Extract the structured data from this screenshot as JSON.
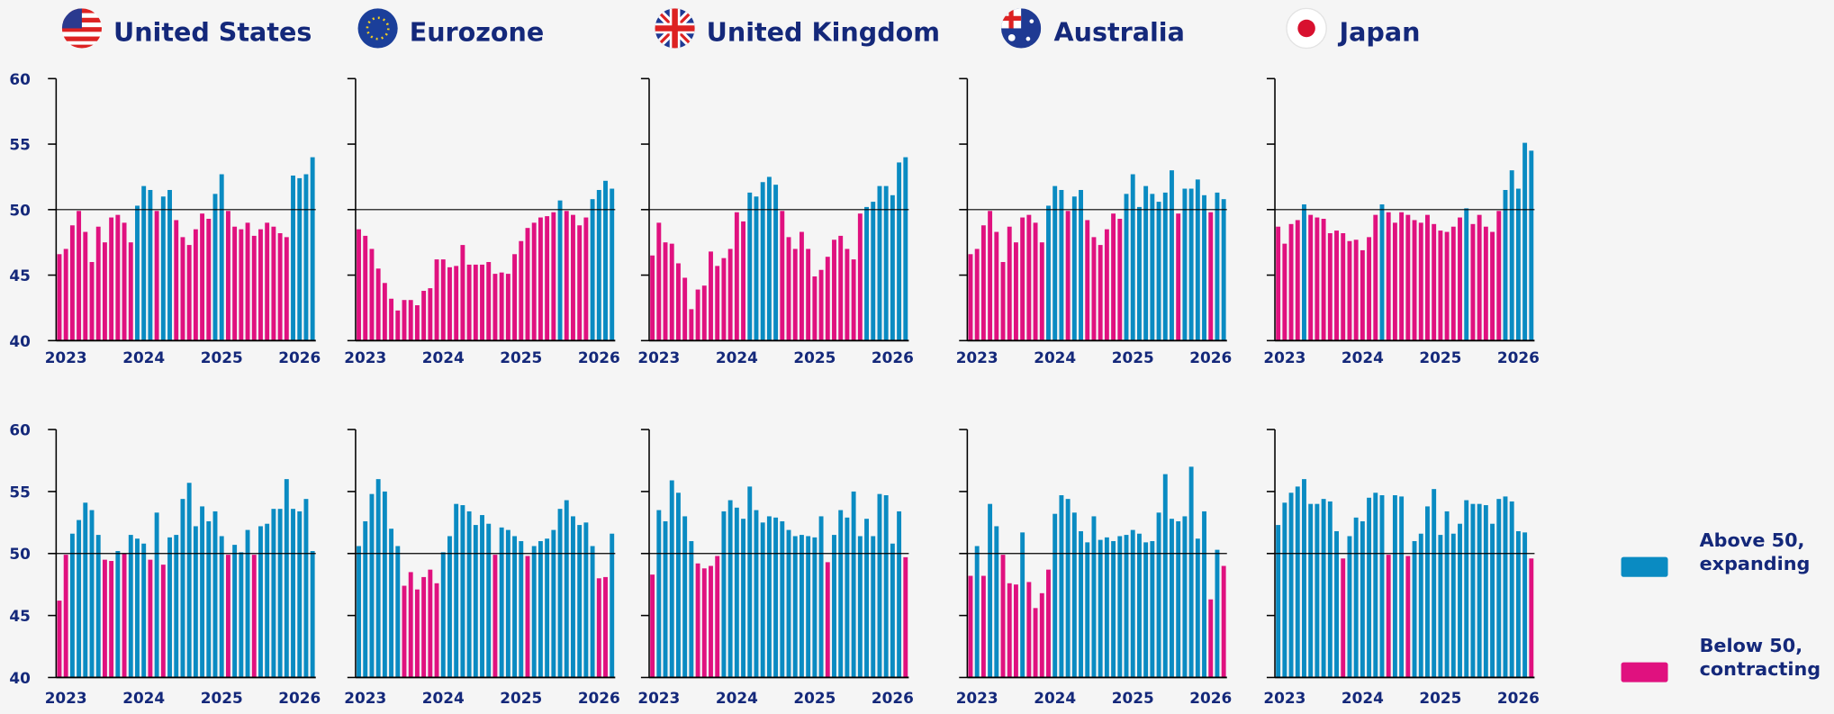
{
  "legend": [
    {
      "label": "Above 50, expanding",
      "color": "#0a8bc2"
    },
    {
      "label": "Below 50, contracting",
      "color": "#e0117f"
    }
  ],
  "chart_data": [
    {
      "type": "bar",
      "title": "United States",
      "reference_line": 50,
      "ylim": [
        40,
        60
      ],
      "yticks": [
        40,
        45,
        50,
        55,
        60
      ],
      "show_ytick_labels": true,
      "categories": [
        null,
        "2023",
        null,
        null,
        null,
        null,
        null,
        null,
        null,
        null,
        null,
        null,
        null,
        "2024",
        null,
        null,
        null,
        null,
        null,
        null,
        null,
        null,
        null,
        null,
        null,
        "2025",
        null,
        null,
        null,
        null,
        null,
        null,
        null,
        null,
        null,
        null,
        null,
        "2026",
        null,
        null
      ],
      "values": [
        46.6,
        47.0,
        48.8,
        49.9,
        48.3,
        46.0,
        48.7,
        47.5,
        49.4,
        49.6,
        49.0,
        47.5,
        50.3,
        51.8,
        51.5,
        49.9,
        51.0,
        51.5,
        49.2,
        47.9,
        47.3,
        48.5,
        49.7,
        49.3,
        51.2,
        52.7,
        49.9,
        48.7,
        48.5,
        49.0,
        48.0,
        48.5,
        49.0,
        48.7,
        48.2,
        47.9,
        52.6,
        52.4,
        52.7,
        54.0
      ]
    },
    {
      "type": "bar",
      "title": "Eurozone",
      "reference_line": 50,
      "ylim": [
        40,
        60
      ],
      "yticks": [
        40,
        45,
        50,
        55,
        60
      ],
      "show_ytick_labels": false,
      "categories": [
        null,
        "2023",
        null,
        null,
        null,
        null,
        null,
        null,
        null,
        null,
        null,
        null,
        null,
        "2024",
        null,
        null,
        null,
        null,
        null,
        null,
        null,
        null,
        null,
        null,
        null,
        "2025",
        null,
        null,
        null,
        null,
        null,
        null,
        null,
        null,
        null,
        null,
        null,
        "2026",
        null,
        null
      ],
      "values": [
        48.5,
        48.0,
        47.0,
        45.5,
        44.4,
        43.2,
        42.3,
        43.1,
        43.1,
        42.7,
        43.8,
        44.0,
        46.2,
        46.2,
        45.6,
        45.7,
        47.3,
        45.8,
        45.8,
        45.8,
        46.0,
        45.1,
        45.2,
        45.1,
        46.6,
        47.6,
        48.6,
        49.0,
        49.4,
        49.5,
        49.8,
        50.7,
        49.9,
        49.6,
        48.8,
        49.4,
        50.8,
        51.5,
        52.2,
        51.6
      ]
    },
    {
      "type": "bar",
      "title": "United Kingdom",
      "reference_line": 50,
      "ylim": [
        40,
        60
      ],
      "yticks": [
        40,
        45,
        50,
        55,
        60
      ],
      "show_ytick_labels": false,
      "categories": [
        null,
        "2023",
        null,
        null,
        null,
        null,
        null,
        null,
        null,
        null,
        null,
        null,
        null,
        "2024",
        null,
        null,
        null,
        null,
        null,
        null,
        null,
        null,
        null,
        null,
        null,
        "2025",
        null,
        null,
        null,
        null,
        null,
        null,
        null,
        null,
        null,
        null,
        null,
        "2026",
        null,
        null
      ],
      "values": [
        46.5,
        49.0,
        47.5,
        47.4,
        45.9,
        44.8,
        42.4,
        43.9,
        44.2,
        46.8,
        45.7,
        46.3,
        47.0,
        49.8,
        49.1,
        51.3,
        51.0,
        52.1,
        52.5,
        51.9,
        49.9,
        47.9,
        47.0,
        48.3,
        47.0,
        44.9,
        45.4,
        46.4,
        47.7,
        48.0,
        47.0,
        46.2,
        49.7,
        50.2,
        50.6,
        51.8,
        51.8,
        51.1,
        53.6,
        54.0
      ]
    },
    {
      "type": "bar",
      "title": "Australia",
      "reference_line": 50,
      "ylim": [
        40,
        60
      ],
      "yticks": [
        40,
        45,
        50,
        55,
        60
      ],
      "show_ytick_labels": false,
      "categories": [
        null,
        "2023",
        null,
        null,
        null,
        null,
        null,
        null,
        null,
        null,
        null,
        null,
        null,
        "2024",
        null,
        null,
        null,
        null,
        null,
        null,
        null,
        null,
        null,
        null,
        null,
        "2025",
        null,
        null,
        null,
        null,
        null,
        null,
        null,
        null,
        null,
        null,
        null,
        "2026",
        null,
        null
      ],
      "values": [
        46.6,
        47.0,
        48.8,
        49.9,
        48.3,
        46.0,
        48.7,
        47.5,
        49.4,
        49.6,
        49.0,
        47.5,
        50.3,
        51.8,
        51.5,
        49.9,
        51.0,
        51.5,
        49.2,
        47.9,
        47.3,
        48.5,
        49.7,
        49.3,
        51.2,
        52.7,
        50.2,
        51.8,
        51.2,
        50.6,
        51.3,
        53.0,
        49.7,
        51.6,
        51.6,
        52.3,
        51.1,
        49.8,
        51.3,
        50.8
      ]
    },
    {
      "type": "bar",
      "title": "Japan",
      "reference_line": 50,
      "ylim": [
        40,
        60
      ],
      "yticks": [
        40,
        45,
        50,
        55,
        60
      ],
      "show_ytick_labels": false,
      "categories": [
        null,
        "2023",
        null,
        null,
        null,
        null,
        null,
        null,
        null,
        null,
        null,
        null,
        null,
        "2024",
        null,
        null,
        null,
        null,
        null,
        null,
        null,
        null,
        null,
        null,
        null,
        "2025",
        null,
        null,
        null,
        null,
        null,
        null,
        null,
        null,
        null,
        null,
        null,
        "2026",
        null,
        null
      ],
      "values": [
        48.7,
        47.4,
        48.9,
        49.2,
        50.4,
        49.6,
        49.4,
        49.3,
        48.2,
        48.4,
        48.2,
        47.6,
        47.7,
        46.9,
        47.9,
        49.6,
        50.4,
        49.8,
        49.0,
        49.8,
        49.6,
        49.2,
        49.0,
        49.6,
        48.9,
        48.4,
        48.3,
        48.7,
        49.4,
        50.1,
        48.9,
        49.6,
        48.7,
        48.3,
        49.9,
        51.5,
        53.0,
        51.6,
        55.1,
        54.5
      ]
    },
    {
      "type": "bar",
      "reference_line": 50,
      "ylim": [
        40,
        60
      ],
      "yticks": [
        40,
        45,
        50,
        55,
        60
      ],
      "show_ytick_labels": true,
      "categories": [
        null,
        "2023",
        null,
        null,
        null,
        null,
        null,
        null,
        null,
        null,
        null,
        null,
        null,
        "2024",
        null,
        null,
        null,
        null,
        null,
        null,
        null,
        null,
        null,
        null,
        null,
        "2025",
        null,
        null,
        null,
        null,
        null,
        null,
        null,
        null,
        null,
        null,
        null,
        "2026",
        null,
        null
      ],
      "values": [
        46.2,
        49.9,
        51.6,
        52.7,
        54.1,
        53.5,
        51.5,
        49.5,
        49.4,
        50.2,
        50.0,
        51.5,
        51.2,
        50.8,
        49.5,
        53.3,
        49.1,
        51.3,
        51.5,
        54.4,
        55.7,
        52.2,
        53.8,
        52.6,
        53.4,
        51.4,
        49.9,
        50.7,
        50.1,
        51.9,
        49.9,
        52.2,
        52.4,
        53.6,
        53.6,
        56.0,
        53.6,
        53.4,
        54.4,
        50.2
      ]
    },
    {
      "type": "bar",
      "reference_line": 50,
      "ylim": [
        40,
        60
      ],
      "yticks": [
        40,
        45,
        50,
        55,
        60
      ],
      "show_ytick_labels": false,
      "categories": [
        null,
        "2023",
        null,
        null,
        null,
        null,
        null,
        null,
        null,
        null,
        null,
        null,
        null,
        "2024",
        null,
        null,
        null,
        null,
        null,
        null,
        null,
        null,
        null,
        null,
        null,
        "2025",
        null,
        null,
        null,
        null,
        null,
        null,
        null,
        null,
        null,
        null,
        null,
        "2026",
        null,
        null
      ],
      "values": [
        50.6,
        52.6,
        54.8,
        56.0,
        55.0,
        52.0,
        50.6,
        47.4,
        48.5,
        47.1,
        48.1,
        48.7,
        47.6,
        50.1,
        51.4,
        54.0,
        53.9,
        53.4,
        52.3,
        53.1,
        52.4,
        49.9,
        52.1,
        51.9,
        51.4,
        51.0,
        49.8,
        50.6,
        51.0,
        51.2,
        51.9,
        53.6,
        54.3,
        53.0,
        52.3,
        52.5,
        50.6,
        48.0,
        48.1,
        51.6
      ]
    },
    {
      "type": "bar",
      "reference_line": 50,
      "ylim": [
        40,
        60
      ],
      "yticks": [
        40,
        45,
        50,
        55,
        60
      ],
      "show_ytick_labels": false,
      "categories": [
        null,
        "2023",
        null,
        null,
        null,
        null,
        null,
        null,
        null,
        null,
        null,
        null,
        null,
        "2024",
        null,
        null,
        null,
        null,
        null,
        null,
        null,
        null,
        null,
        null,
        null,
        "2025",
        null,
        null,
        null,
        null,
        null,
        null,
        null,
        null,
        null,
        null,
        null,
        "2026",
        null,
        null
      ],
      "values": [
        48.3,
        53.5,
        52.6,
        55.9,
        54.9,
        53.0,
        51.0,
        49.2,
        48.8,
        49.0,
        49.8,
        53.4,
        54.3,
        53.7,
        52.8,
        55.4,
        53.5,
        52.5,
        53.0,
        52.9,
        52.6,
        51.9,
        51.4,
        51.5,
        51.4,
        51.3,
        53.0,
        49.3,
        51.5,
        53.5,
        52.9,
        55.0,
        51.4,
        52.8,
        51.4,
        54.8,
        54.7,
        50.8,
        53.4,
        49.7
      ]
    },
    {
      "type": "bar",
      "reference_line": 50,
      "ylim": [
        40,
        60
      ],
      "yticks": [
        40,
        45,
        50,
        55,
        60
      ],
      "show_ytick_labels": false,
      "categories": [
        null,
        "2023",
        null,
        null,
        null,
        null,
        null,
        null,
        null,
        null,
        null,
        null,
        null,
        "2024",
        null,
        null,
        null,
        null,
        null,
        null,
        null,
        null,
        null,
        null,
        null,
        "2025",
        null,
        null,
        null,
        null,
        null,
        null,
        null,
        null,
        null,
        null,
        null,
        "2026",
        null,
        null
      ],
      "values": [
        48.2,
        50.6,
        48.2,
        54.0,
        52.2,
        49.9,
        47.6,
        47.5,
        51.7,
        47.7,
        45.6,
        46.8,
        48.7,
        53.2,
        54.7,
        54.4,
        53.3,
        51.8,
        50.9,
        53.0,
        51.1,
        51.3,
        51.0,
        51.4,
        51.5,
        51.9,
        51.6,
        50.9,
        51.0,
        53.3,
        56.4,
        52.8,
        52.6,
        53.0,
        57.0,
        51.2,
        53.4,
        46.3,
        50.3,
        49.0
      ]
    },
    {
      "type": "bar",
      "reference_line": 50,
      "ylim": [
        40,
        60
      ],
      "yticks": [
        40,
        45,
        50,
        55,
        60
      ],
      "show_ytick_labels": false,
      "categories": [
        null,
        "2023",
        null,
        null,
        null,
        null,
        null,
        null,
        null,
        null,
        null,
        null,
        null,
        "2024",
        null,
        null,
        null,
        null,
        null,
        null,
        null,
        null,
        null,
        null,
        null,
        "2025",
        null,
        null,
        null,
        null,
        null,
        null,
        null,
        null,
        null,
        null,
        null,
        "2026",
        null,
        null
      ],
      "values": [
        52.3,
        54.1,
        54.9,
        55.4,
        56.0,
        54.0,
        54.0,
        54.4,
        54.2,
        51.8,
        49.6,
        51.4,
        52.9,
        52.6,
        54.5,
        54.9,
        54.7,
        49.9,
        54.7,
        54.6,
        49.8,
        51.0,
        51.6,
        53.8,
        55.2,
        51.5,
        53.4,
        51.6,
        52.4,
        54.3,
        54.0,
        54.0,
        53.9,
        52.4,
        54.4,
        54.6,
        54.2,
        51.8,
        51.7,
        49.6
      ]
    }
  ]
}
